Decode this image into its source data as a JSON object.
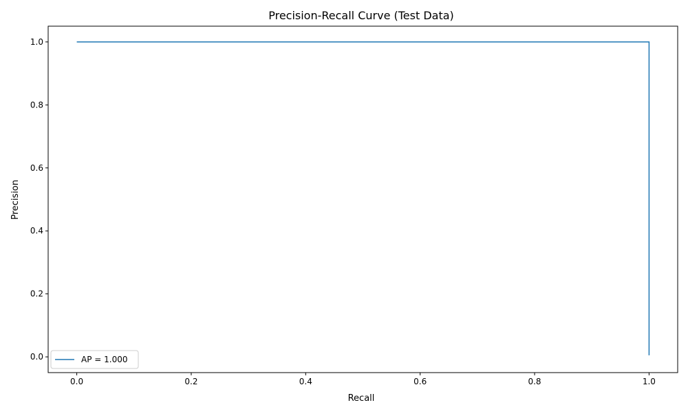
{
  "chart_data": {
    "type": "line",
    "title": "Precision-Recall Curve (Test Data)",
    "xlabel": "Recall",
    "ylabel": "Precision",
    "xlim": [
      -0.05,
      1.05
    ],
    "ylim": [
      -0.05,
      1.05
    ],
    "x_ticks": [
      0.0,
      0.2,
      0.4,
      0.6,
      0.8,
      1.0
    ],
    "x_tick_labels": [
      "0.0",
      "0.2",
      "0.4",
      "0.6",
      "0.8",
      "1.0"
    ],
    "y_ticks": [
      0.0,
      0.2,
      0.4,
      0.6,
      0.8,
      1.0
    ],
    "y_tick_labels": [
      "0.0",
      "0.2",
      "0.4",
      "0.6",
      "0.8",
      "1.0"
    ],
    "grid": false,
    "legend_position": "lower-left",
    "series": [
      {
        "name": "AP = 1.000",
        "color": "#1f77b4",
        "x": [
          0.0,
          1.0,
          1.0
        ],
        "y": [
          1.0,
          1.0,
          0.005
        ]
      }
    ]
  }
}
